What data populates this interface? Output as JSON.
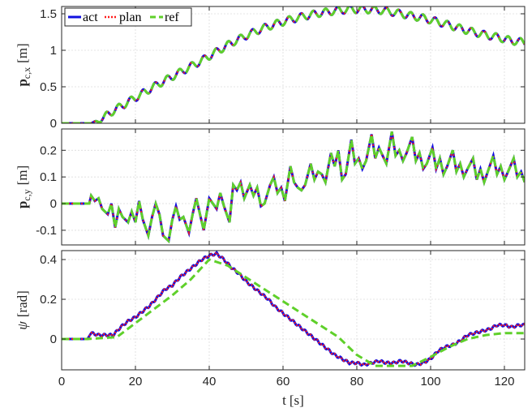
{
  "colors": {
    "act": "#1010e0",
    "plan": "#ff1a1a",
    "ref": "#5fd02a",
    "grid": "#dcdcdc",
    "axis": "#262626"
  },
  "chart_data": [
    {
      "type": "line",
      "ylabel_main": "p",
      "ylabel_sub": "c,x",
      "ylabel_unit": "[m]",
      "xlim": [
        0,
        125.5
      ],
      "ylim": [
        0,
        1.6
      ],
      "xticks": [
        0,
        20,
        40,
        60,
        80,
        100,
        120
      ],
      "yticks": [
        0,
        0.5,
        1,
        1.5
      ],
      "ytick_labels": [
        "0",
        "0.5",
        "1",
        "1.5"
      ],
      "grid": true,
      "legend_position": "top-left",
      "legend": [
        "act",
        "plan",
        "ref"
      ],
      "series_ref": {
        "x": [
          0,
          2,
          4,
          6,
          8,
          10,
          14,
          18,
          22,
          26,
          30,
          34,
          38,
          42,
          46,
          50,
          54,
          58,
          62,
          66,
          70,
          74,
          78,
          82,
          86,
          90,
          94,
          98,
          102,
          106,
          110,
          114,
          118,
          122,
          125.5
        ],
        "y": [
          0,
          0,
          0,
          0,
          0,
          0.03,
          0.17,
          0.29,
          0.41,
          0.53,
          0.64,
          0.75,
          0.86,
          0.98,
          1.1,
          1.2,
          1.29,
          1.36,
          1.42,
          1.47,
          1.51,
          1.54,
          1.56,
          1.56,
          1.55,
          1.52,
          1.48,
          1.44,
          1.39,
          1.33,
          1.27,
          1.22,
          1.18,
          1.13,
          1.11
        ]
      },
      "oscillation": {
        "start": 8,
        "period": 3.3,
        "amplitude": 0.05
      }
    },
    {
      "type": "line",
      "ylabel_main": "p",
      "ylabel_sub": "c,y",
      "ylabel_unit": "[m]",
      "xlim": [
        0,
        125.5
      ],
      "ylim": [
        -0.155,
        0.28
      ],
      "xticks": [
        0,
        20,
        40,
        60,
        80,
        100,
        120
      ],
      "yticks": [
        -0.1,
        0,
        0.1,
        0.2
      ],
      "ytick_labels": [
        "-0.1",
        "0",
        "0.1",
        "0.2"
      ],
      "grid": true,
      "series_ref": {
        "x": [
          0,
          7.5,
          8,
          9,
          10,
          11,
          12.5,
          13.5,
          14.5,
          15.5,
          16.5,
          18,
          19,
          20,
          21,
          22,
          23.5,
          24.5,
          25.5,
          26.5,
          27.5,
          29,
          30,
          31,
          32,
          33,
          34.5,
          35.5,
          36.5,
          37.5,
          38.5,
          40,
          41,
          42,
          43,
          44,
          45.5,
          46.5,
          47.5,
          48.5,
          49.5,
          51,
          52,
          53,
          54,
          55,
          56.5,
          57.5,
          58.5,
          59.5,
          60.5,
          62,
          63,
          64,
          65,
          66,
          67.5,
          68.5,
          69.5,
          70.5,
          71.5,
          73,
          74,
          75,
          76,
          77,
          78.5,
          79.5,
          80.5,
          81.5,
          82.5,
          84,
          85,
          86,
          87,
          88,
          89.5,
          90.5,
          91.5,
          92.5,
          93.5,
          95,
          96,
          97,
          98,
          99,
          100.5,
          101.5,
          102.5,
          103.5,
          104.5,
          106,
          107,
          108,
          109,
          110,
          111.5,
          112.5,
          113.5,
          114.5,
          115.5,
          117,
          118,
          119,
          120,
          121,
          122.5,
          123.5,
          124.5,
          125.5
        ],
        "y": [
          0,
          0,
          0.03,
          0.01,
          0.02,
          -0.02,
          -0.04,
          0.0,
          -0.09,
          -0.02,
          -0.05,
          -0.07,
          -0.03,
          -0.07,
          0.01,
          -0.06,
          -0.12,
          -0.05,
          0.0,
          -0.04,
          -0.12,
          -0.14,
          -0.06,
          -0.01,
          -0.06,
          -0.05,
          -0.11,
          -0.04,
          0.02,
          -0.04,
          -0.1,
          0.02,
          0.0,
          -0.02,
          0.04,
          -0.01,
          -0.07,
          0.07,
          0.05,
          0.08,
          0.02,
          0.07,
          0.03,
          0.06,
          -0.01,
          0.0,
          0.07,
          0.1,
          0.04,
          0.06,
          0.01,
          0.14,
          0.08,
          0.06,
          0.05,
          0.07,
          0.15,
          0.09,
          0.12,
          0.11,
          0.08,
          0.19,
          0.14,
          0.2,
          0.09,
          0.11,
          0.24,
          0.15,
          0.17,
          0.13,
          0.16,
          0.26,
          0.17,
          0.21,
          0.18,
          0.15,
          0.27,
          0.18,
          0.2,
          0.16,
          0.19,
          0.25,
          0.16,
          0.19,
          0.13,
          0.15,
          0.21,
          0.13,
          0.17,
          0.11,
          0.14,
          0.2,
          0.12,
          0.15,
          0.1,
          0.13,
          0.17,
          0.09,
          0.13,
          0.08,
          0.12,
          0.18,
          0.11,
          0.14,
          0.09,
          0.12,
          0.17,
          0.1,
          0.12,
          0.08
        ]
      }
    },
    {
      "type": "line",
      "ylabel_main": "ψ",
      "ylabel_sub": "",
      "ylabel_unit": "[rad]",
      "xlabel_main": "t",
      "xlabel_unit": "[s]",
      "xlim": [
        0,
        125.5
      ],
      "ylim": [
        -0.155,
        0.445
      ],
      "xticks": [
        0,
        20,
        40,
        60,
        80,
        100,
        120
      ],
      "xtick_labels": [
        "0",
        "20",
        "40",
        "60",
        "80",
        "100",
        "120"
      ],
      "yticks": [
        0,
        0.2,
        0.4
      ],
      "ytick_labels": [
        "0",
        "0.2",
        "0.4"
      ],
      "grid": true,
      "series_ref": {
        "x": [
          0,
          7,
          15,
          20,
          25,
          30,
          35,
          40,
          45,
          50,
          55,
          60,
          65,
          70,
          75,
          80,
          85,
          90,
          95,
          100,
          105,
          110,
          115,
          120,
          125.5
        ],
        "y": [
          0,
          0,
          0.01,
          0.08,
          0.15,
          0.22,
          0.3,
          0.4,
          0.37,
          0.31,
          0.25,
          0.19,
          0.13,
          0.07,
          0.01,
          -0.08,
          -0.135,
          -0.135,
          -0.135,
          -0.09,
          -0.04,
          0.0,
          0.02,
          0.03,
          0.03
        ]
      },
      "series_act": {
        "x": [
          0,
          7,
          8,
          10,
          12,
          14,
          16,
          18,
          20,
          22,
          24,
          26,
          28,
          30,
          32,
          34,
          36,
          38,
          40,
          42,
          44,
          46,
          48,
          50,
          52,
          54,
          56,
          58,
          60,
          62,
          64,
          66,
          68,
          70,
          72,
          74,
          76,
          78,
          80,
          82,
          84,
          86,
          88,
          90,
          92,
          94,
          96,
          98,
          100,
          102,
          104,
          106,
          108,
          110,
          112,
          114,
          116,
          118,
          120,
          122,
          124,
          125.5
        ],
        "y": [
          0,
          0,
          0.03,
          0.02,
          0.02,
          0.02,
          0.06,
          0.09,
          0.11,
          0.14,
          0.17,
          0.21,
          0.25,
          0.27,
          0.31,
          0.34,
          0.37,
          0.4,
          0.42,
          0.43,
          0.4,
          0.36,
          0.33,
          0.29,
          0.26,
          0.23,
          0.2,
          0.16,
          0.13,
          0.1,
          0.07,
          0.04,
          0.01,
          -0.02,
          -0.05,
          -0.08,
          -0.1,
          -0.12,
          -0.12,
          -0.13,
          -0.12,
          -0.11,
          -0.12,
          -0.12,
          -0.11,
          -0.12,
          -0.13,
          -0.12,
          -0.1,
          -0.06,
          -0.04,
          -0.03,
          -0.01,
          0.02,
          0.03,
          0.04,
          0.05,
          0.07,
          0.07,
          0.06,
          0.07,
          0.07
        ]
      }
    }
  ]
}
